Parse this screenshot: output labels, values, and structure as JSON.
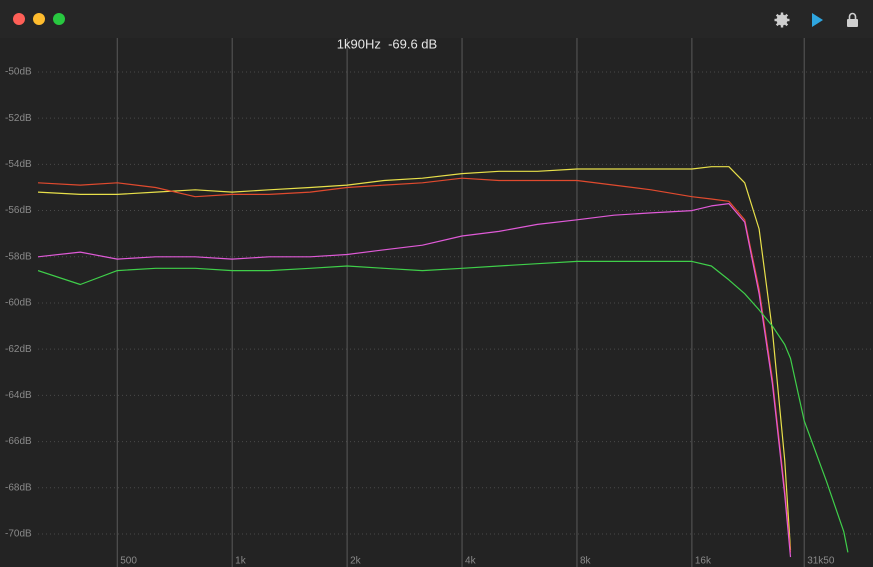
{
  "chart_data": {
    "type": "line",
    "readout": "1k90Hz  -69.6 dB",
    "x": [
      310,
      400,
      500,
      630,
      800,
      1000,
      1250,
      1600,
      2000,
      2500,
      3150,
      4000,
      5000,
      6300,
      8000,
      10000,
      12500,
      16000,
      18000,
      20000,
      22000,
      24000,
      26000,
      28000,
      29000,
      31500,
      36000,
      40000,
      41000
    ],
    "xlim": [
      310,
      47700
    ],
    "log_x": true,
    "xticks": [
      500,
      {
        "value": 1000,
        "label": "1k"
      },
      {
        "value": 2000,
        "label": "2k"
      },
      {
        "value": 4000,
        "label": "4k"
      },
      {
        "value": 8000,
        "label": "8k"
      },
      {
        "value": 16000,
        "label": "16k"
      },
      {
        "value": 31500,
        "label": "31k50"
      }
    ],
    "ylim": [
      -71.43,
      -48.53
    ],
    "yticks": [
      {
        "value": -50,
        "label": "-50dB"
      },
      {
        "value": -52,
        "label": "-52dB"
      },
      {
        "value": -54,
        "label": "-54dB"
      },
      {
        "value": -56,
        "label": "-56dB"
      },
      {
        "value": -58,
        "label": "-58dB"
      },
      {
        "value": -60,
        "label": "-60dB"
      },
      {
        "value": -62,
        "label": "-62dB"
      },
      {
        "value": -64,
        "label": "-64dB"
      },
      {
        "value": -66,
        "label": "-66dB"
      },
      {
        "value": -68,
        "label": "-68dB"
      },
      {
        "value": -70,
        "label": "-70dB"
      }
    ],
    "grid": true,
    "series": [
      {
        "color": "#e8e04a",
        "values": [
          -55.2,
          -55.3,
          -55.3,
          -55.2,
          -55.1,
          -55.2,
          -55.1,
          -55.0,
          -54.9,
          -54.7,
          -54.6,
          -54.4,
          -54.3,
          -54.3,
          -54.2,
          -54.2,
          -54.2,
          -54.2,
          -54.1,
          -54.1,
          -54.8,
          -56.8,
          -61.2,
          -66.8,
          -70.7,
          null,
          null,
          null,
          null
        ]
      },
      {
        "color": "#e04a2e",
        "values": [
          -54.8,
          -54.9,
          -54.8,
          -55.0,
          -55.4,
          -55.3,
          -55.3,
          -55.2,
          -55.0,
          -54.9,
          -54.8,
          -54.6,
          -54.7,
          -54.7,
          -54.7,
          -54.9,
          -55.1,
          -55.4,
          -55.5,
          -55.6,
          -56.4,
          -59.4,
          -63.3,
          -68.1,
          -70.8,
          null,
          null,
          null,
          null
        ]
      },
      {
        "color": "#e05ad8",
        "values": [
          -58.0,
          -57.8,
          -58.1,
          -58.0,
          -58.0,
          -58.1,
          -58.0,
          -58.0,
          -57.9,
          -57.7,
          -57.5,
          -57.1,
          -56.9,
          -56.6,
          -56.4,
          -56.2,
          -56.1,
          -56.0,
          -55.8,
          -55.7,
          -56.5,
          -59.6,
          -63.5,
          -68.3,
          -71.0,
          null,
          null,
          null,
          null
        ]
      },
      {
        "color": "#3fcf4a",
        "values": [
          -58.6,
          -59.2,
          -58.6,
          -58.5,
          -58.5,
          -58.6,
          -58.6,
          -58.5,
          -58.4,
          -58.5,
          -58.6,
          -58.5,
          -58.4,
          -58.3,
          -58.2,
          -58.2,
          -58.2,
          -58.2,
          -58.4,
          -59.0,
          -59.6,
          -60.3,
          -61.0,
          -61.8,
          -62.4,
          -65.1,
          -67.7,
          -69.9,
          -70.8
        ]
      }
    ]
  }
}
